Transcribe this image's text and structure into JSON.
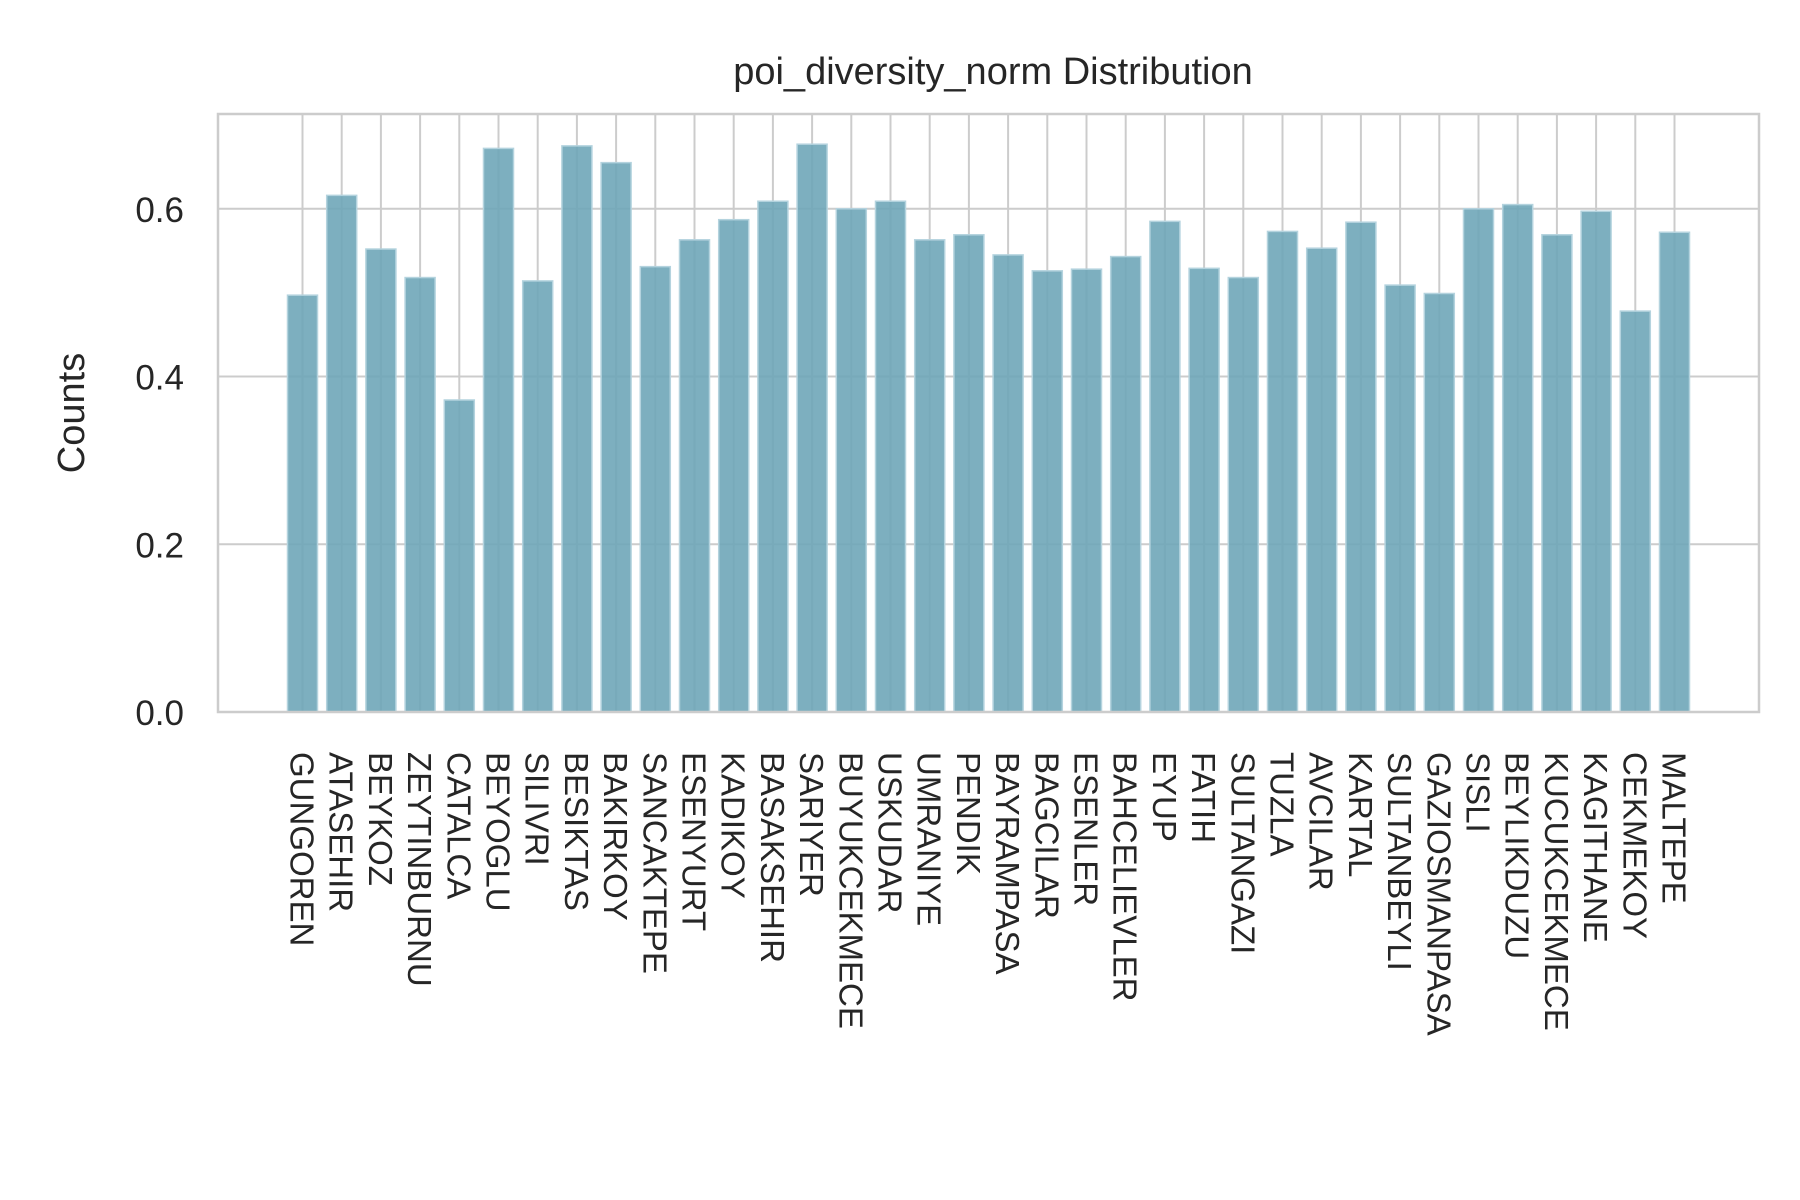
{
  "chart_data": {
    "type": "bar",
    "title": "poi_diversity_norm Distribution",
    "xlabel": "",
    "ylabel": "Counts",
    "ylim": [
      0,
      0.713
    ],
    "yticks": [
      "0.0",
      "0.2",
      "0.4",
      "0.6"
    ],
    "grid": true,
    "legend": "none",
    "categories": [
      "GUNGOREN",
      "ATASEHIR",
      "BEYKOZ",
      "ZEYTINBURNU",
      "CATALCA",
      "BEYOGLU",
      "SILIVRI",
      "BESIKTAS",
      "BAKIRKOY",
      "SANCAKTEPE",
      "ESENYURT",
      "KADIKOY",
      "BASAKSEHIR",
      "SARIYER",
      "BUYUKCEKMECE",
      "USKUDAR",
      "UMRANIYE",
      "PENDIK",
      "BAYRAMPASA",
      "BAGCILAR",
      "ESENLER",
      "BAHCELIEVLER",
      "EYUP",
      "FATIH",
      "SULTANGAZI",
      "TUZLA",
      "AVCILAR",
      "KARTAL",
      "SULTANBEYLI",
      "GAZIOSMANPASA",
      "SISLI",
      "BEYLIKDUZU",
      "KUCUKCEKMECE",
      "KAGITHANE",
      "CEKMEKOY",
      "MALTEPE"
    ],
    "values": [
      0.497,
      0.616,
      0.552,
      0.518,
      0.372,
      0.672,
      0.514,
      0.675,
      0.655,
      0.531,
      0.563,
      0.587,
      0.609,
      0.677,
      0.6,
      0.609,
      0.563,
      0.569,
      0.545,
      0.526,
      0.528,
      0.543,
      0.585,
      0.529,
      0.518,
      0.573,
      0.553,
      0.584,
      0.509,
      0.499,
      0.6,
      0.605,
      0.569,
      0.597,
      0.478,
      0.572
    ],
    "colors": {
      "bar": "#6fa6b8",
      "bar_edge": "#b4d3de",
      "grid": "#cccccc",
      "axes": "#cccccc",
      "text": "#262626"
    }
  }
}
